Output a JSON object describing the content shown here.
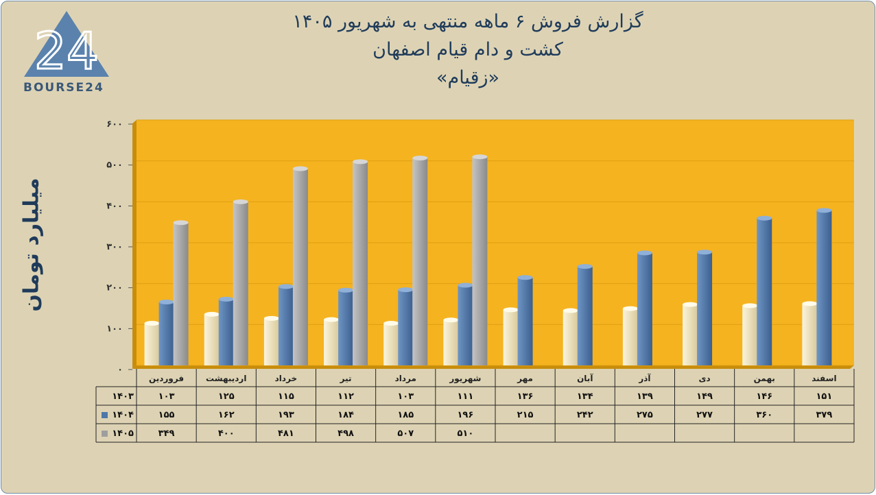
{
  "header": {
    "title_line1": "گزارش  فروش ۶ ماهه منتهی به شهریور ۱۴۰۵",
    "title_line2": "کشت و دام قیام اصفهان",
    "title_line3": "«زقیام»"
  },
  "logo": {
    "text": "BOURSE24",
    "mark": "24"
  },
  "colors": {
    "background": "#ddd3b4",
    "plot": "#f5b320",
    "y1403": "#efe4c0",
    "y1404": "#4f77a8",
    "y1405": "#9e9e9e"
  },
  "chart_data": {
    "type": "bar",
    "ylabel": "میلیارد تومان",
    "ylim": [
      0,
      600
    ],
    "yticks": [
      "۰",
      "۱۰۰",
      "۲۰۰",
      "۳۰۰",
      "۴۰۰",
      "۵۰۰",
      "۶۰۰"
    ],
    "categories": [
      "فروردین",
      "اردیبهشت",
      "خرداد",
      "تیر",
      "مرداد",
      "شهریور",
      "مهر",
      "آبان",
      "آذر",
      "دی",
      "بهمن",
      "اسفند"
    ],
    "series": [
      {
        "name": "۱۴۰۳",
        "values": [
          103,
          125,
          115,
          112,
          103,
          111,
          136,
          134,
          139,
          149,
          146,
          151
        ],
        "labels": [
          "۱۰۳",
          "۱۲۵",
          "۱۱۵",
          "۱۱۲",
          "۱۰۳",
          "۱۱۱",
          "۱۳۶",
          "۱۳۴",
          "۱۳۹",
          "۱۴۹",
          "۱۴۶",
          "۱۵۱"
        ]
      },
      {
        "name": "۱۴۰۴",
        "values": [
          155,
          162,
          193,
          184,
          185,
          196,
          215,
          242,
          275,
          277,
          360,
          379
        ],
        "labels": [
          "۱۵۵",
          "۱۶۲",
          "۱۹۳",
          "۱۸۴",
          "۱۸۵",
          "۱۹۶",
          "۲۱۵",
          "۲۴۲",
          "۲۷۵",
          "۲۷۷",
          "۳۶۰",
          "۳۷۹"
        ]
      },
      {
        "name": "۱۴۰۵",
        "values": [
          349,
          400,
          481,
          498,
          507,
          510,
          null,
          null,
          null,
          null,
          null,
          null
        ],
        "labels": [
          "۳۴۹",
          "۴۰۰",
          "۴۸۱",
          "۴۹۸",
          "۵۰۷",
          "۵۱۰",
          "",
          "",
          "",
          "",
          "",
          ""
        ]
      }
    ]
  }
}
